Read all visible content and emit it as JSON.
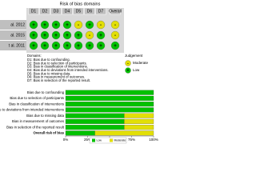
{
  "traffic_light": {
    "title": "Risk of bias domains",
    "columns": [
      "D1",
      "D2",
      "D3",
      "D4",
      "D5",
      "D6",
      "D7",
      "Overall"
    ],
    "rows": [
      {
        "study": "al. 2012",
        "symbols": [
          "+",
          "+",
          "+",
          "+",
          "-",
          "+",
          "-",
          "-"
        ]
      },
      {
        "study": "al. 2015",
        "symbols": [
          "+",
          "+",
          "+",
          "+",
          "+",
          "-",
          "+",
          "-"
        ]
      },
      {
        "study": "t al. 2011",
        "symbols": [
          "+",
          "+",
          "+",
          "+",
          "+",
          "+",
          "+",
          "+"
        ]
      }
    ],
    "domains_title": "Domains:",
    "domains": [
      "D1: Bias due to confounding.",
      "D2: Bias due to selection of participants.",
      "D3: Bias in classification of interventions.",
      "D4: Bias due to deviations from intended interventions.",
      "D5: Bias due to missing data.",
      "D6: Bias in measurement of outcomes.",
      "D7: Bias in selection of the reported result."
    ],
    "judgement_title": "Judgement",
    "judgements": [
      {
        "label": "Moderate",
        "symbol": "-",
        "color": "#e2df07"
      },
      {
        "label": "Low",
        "symbol": "+",
        "color": "#02c100"
      }
    ]
  },
  "chart_data": {
    "type": "bar",
    "orientation": "horizontal",
    "stacked": true,
    "categories": [
      "Bias due to confounding",
      "Bias due to selection of participants",
      "Bias in classification of interventions",
      "Bias due to deviations from intended interventions",
      "Bias due to missing data",
      "Bias in measurement of outcomes",
      "Bias in selection of the reported result",
      "Overall risk of bias"
    ],
    "series": [
      {
        "name": "Low",
        "color": "#02c100",
        "values": [
          100,
          100,
          100,
          100,
          66.7,
          66.7,
          66.7,
          33.3
        ]
      },
      {
        "name": "Moderate",
        "color": "#e2df07",
        "values": [
          0,
          0,
          0,
          0,
          33.3,
          33.3,
          33.3,
          66.7
        ]
      }
    ],
    "xlim": [
      0,
      100
    ],
    "xticks": [
      {
        "value": 0,
        "label": "0%"
      },
      {
        "value": 25,
        "label": "25%"
      },
      {
        "value": 50,
        "label": "50%"
      },
      {
        "value": 75,
        "label": "75%"
      },
      {
        "value": 100,
        "label": "100%"
      }
    ]
  }
}
